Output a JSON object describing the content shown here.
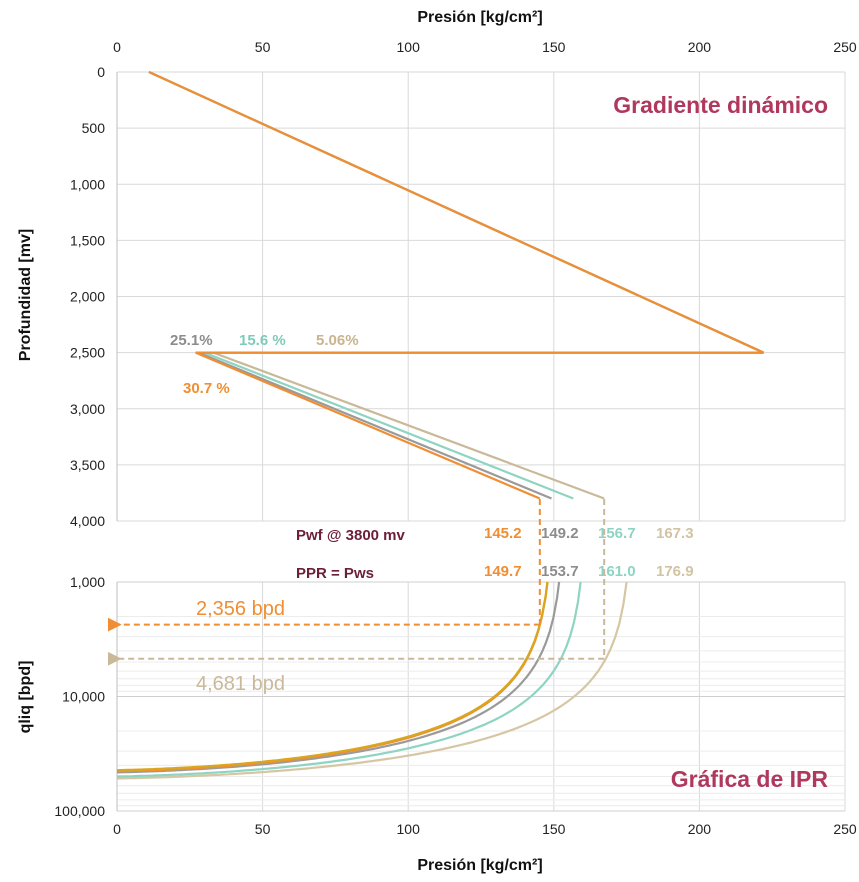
{
  "chart_data": [
    {
      "type": "line",
      "title": "Gradiente dinámico",
      "xlabel": "Presión [kg/cm²]",
      "ylabel": "Profundidad [mv]",
      "xlim": [
        0,
        250
      ],
      "ylim": [
        0,
        4000
      ],
      "y_inverted": true,
      "x_axis_position": "top",
      "xticks": [
        "0",
        "50",
        "100",
        "150",
        "200",
        "250"
      ],
      "yticks": [
        "0",
        "500",
        "1,000",
        "1,500",
        "2,000",
        "2,500",
        "3,000",
        "3,500",
        "4,000"
      ],
      "grid": true,
      "series": [
        {
          "color": "#c9b999",
          "points": [
            [
              11,
              0
            ],
            [
              222,
              2500
            ],
            [
              33,
              2500
            ],
            [
              167.3,
              3800
            ],
            [
              167.3,
              3800
            ]
          ]
        },
        {
          "color": "#8fd4c2",
          "points": [
            [
              11,
              0
            ],
            [
              222,
              2500
            ],
            [
              30,
              2500
            ],
            [
              156.7,
              3800
            ]
          ]
        },
        {
          "color": "#9a9a9a",
          "points": [
            [
              11,
              0
            ],
            [
              222,
              2500
            ],
            [
              28,
              2500
            ],
            [
              149.2,
              3800
            ]
          ]
        },
        {
          "color": "#ef8e32",
          "points": [
            [
              11,
              0
            ],
            [
              222,
              2500
            ],
            [
              27,
              2500
            ],
            [
              145.2,
              3800
            ]
          ]
        }
      ],
      "annotations": [
        {
          "text": "25.1%",
          "color": "#8c8c8c"
        },
        {
          "text": "15.6 %",
          "color": "#7fcbb8"
        },
        {
          "text": "5.06%",
          "color": "#c9b48f"
        },
        {
          "text": "30.7 %",
          "color": "#ef8e32"
        }
      ]
    },
    {
      "type": "line",
      "title": "Gráfica de IPR",
      "xlabel": "Presión [kg/cm²]",
      "ylabel": "qliq [bpd]",
      "xlim": [
        0,
        250
      ],
      "ylim": [
        1000,
        100000
      ],
      "y_scale": "log",
      "y_inverted": true,
      "xticks": [
        "0",
        "50",
        "100",
        "150",
        "200",
        "250"
      ],
      "yticks": [
        "1,000",
        "10,000",
        "100,000"
      ],
      "grid": true,
      "series": [
        {
          "color": "#d6c7a4",
          "pws": 176.9,
          "qmax": 52000
        },
        {
          "color": "#8fd4c2",
          "pws": 161.0,
          "qmax": 50000
        },
        {
          "color": "#9a9a9a",
          "pws": 153.7,
          "qmax": 46000
        },
        {
          "color": "#ef8e32",
          "pws": 149.7,
          "qmax": 45000
        },
        {
          "color": "#d9a61f",
          "pws": 149.7,
          "qmax": 44000
        }
      ],
      "operating_points": [
        {
          "label": "2,356 bpd",
          "pwf": 145.2,
          "q": 2356,
          "color": "#ef8e32"
        },
        {
          "label": "4,681 bpd",
          "pwf": 167.3,
          "q": 4681,
          "color": "#c9b999"
        }
      ]
    }
  ],
  "pwf_row": {
    "label": "Pwf @ 3800  mv",
    "values": [
      {
        "text": "145.2",
        "color": "#ef8e32"
      },
      {
        "text": "149.2",
        "color": "#8c8c8c"
      },
      {
        "text": "156.7",
        "color": "#8fd4c2"
      },
      {
        "text": "167.3",
        "color": "#d2c3a2"
      }
    ]
  },
  "ppr_row": {
    "label": "PPR = Pws",
    "values": [
      {
        "text": "149.7",
        "color": "#ef8e32"
      },
      {
        "text": "153.7",
        "color": "#8c8c8c"
      },
      {
        "text": "161.0",
        "color": "#8fd4c2"
      },
      {
        "text": "176.9",
        "color": "#d2c3a2"
      }
    ]
  }
}
